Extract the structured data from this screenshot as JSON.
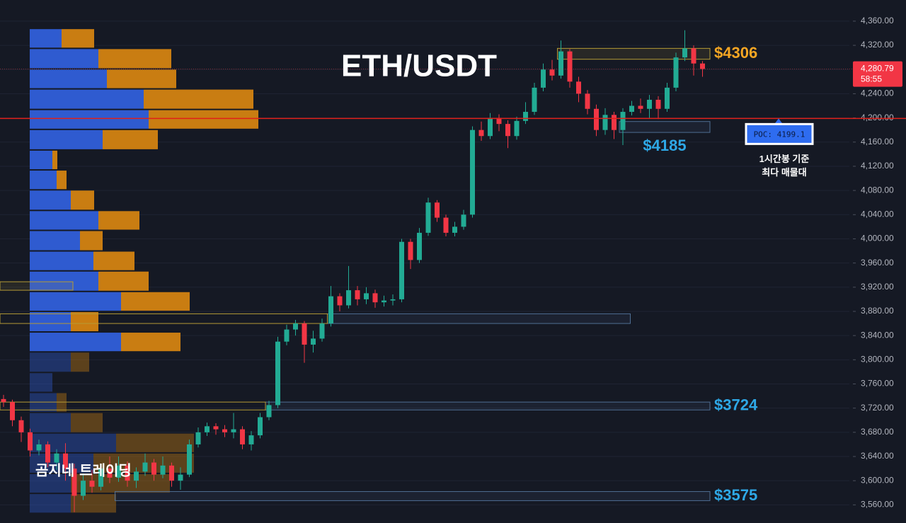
{
  "chart_data": {
    "type": "candlestick",
    "title": "ETH/USDT",
    "watermark": "곰지네 트레이딩",
    "ylim": [
      3530,
      4395
    ],
    "yticks": [
      {
        "value": 4360,
        "label": "4,360.00"
      },
      {
        "value": 4320,
        "label": "4,320.00"
      },
      {
        "value": 4280,
        "label": "4,280.00"
      },
      {
        "value": 4240,
        "label": "4,240.00"
      },
      {
        "value": 4200,
        "label": "4,200.00"
      },
      {
        "value": 4160,
        "label": "4,160.00"
      },
      {
        "value": 4120,
        "label": "4,120.00"
      },
      {
        "value": 4080,
        "label": "4,080.00"
      },
      {
        "value": 4040,
        "label": "4,040.00"
      },
      {
        "value": 4000,
        "label": "4,000.00"
      },
      {
        "value": 3960,
        "label": "3,960.00"
      },
      {
        "value": 3920,
        "label": "3,920.00"
      },
      {
        "value": 3880,
        "label": "3,880.00"
      },
      {
        "value": 3840,
        "label": "3,840.00"
      },
      {
        "value": 3800,
        "label": "3,800.00"
      },
      {
        "value": 3760,
        "label": "3,760.00"
      },
      {
        "value": 3720,
        "label": "3,720.00"
      },
      {
        "value": 3680,
        "label": "3,680.00"
      },
      {
        "value": 3640,
        "label": "3,640.00"
      },
      {
        "value": 3600,
        "label": "3,600.00"
      },
      {
        "value": 3560,
        "label": "3,560.00"
      }
    ],
    "grid": true,
    "up_color": "#22ab94",
    "down_color": "#f23645",
    "open": [
      3735,
      3730,
      3700,
      3680,
      3650,
      3660,
      3630,
      3645,
      3620,
      3575,
      3600,
      3590,
      3620,
      3605,
      3625,
      3600,
      3615,
      3630,
      3610,
      3625,
      3600,
      3610,
      3660,
      3680,
      3690,
      3685,
      3680,
      3685,
      3660,
      3675,
      3705,
      3725,
      3830,
      3850,
      3860,
      3825,
      3835,
      3860,
      3905,
      3890,
      3915,
      3900,
      3910,
      3895,
      3898,
      3900,
      3995,
      3965,
      4010,
      4060,
      4035,
      4010,
      4020,
      4040,
      4180,
      4170,
      4200,
      4190,
      4170,
      4195,
      4210,
      4250,
      4280,
      4270,
      4310,
      4260,
      4240,
      4215,
      4180,
      4205,
      4180,
      4210,
      4220,
      4215,
      4230,
      4215,
      4250,
      4300,
      4315,
      4290
    ],
    "high": [
      3742,
      3734,
      3706,
      3686,
      3668,
      3665,
      3652,
      3662,
      3628,
      3612,
      3618,
      3628,
      3640,
      3640,
      3632,
      3622,
      3645,
      3636,
      3640,
      3630,
      3622,
      3668,
      3688,
      3696,
      3695,
      3692,
      3712,
      3690,
      3682,
      3712,
      3732,
      3838,
      3858,
      3866,
      3864,
      3848,
      3868,
      3922,
      3910,
      3955,
      3922,
      3920,
      3916,
      3906,
      3908,
      4000,
      4000,
      4018,
      4068,
      4064,
      4040,
      4028,
      4048,
      4186,
      4194,
      4208,
      4206,
      4196,
      4202,
      4226,
      4258,
      4290,
      4296,
      4328,
      4314,
      4268,
      4246,
      4222,
      4216,
      4210,
      4216,
      4228,
      4232,
      4238,
      4236,
      4258,
      4308,
      4345,
      4320,
      4294
    ],
    "low": [
      3722,
      3690,
      3664,
      3640,
      3642,
      3622,
      3618,
      3600,
      3548,
      3568,
      3580,
      3584,
      3596,
      3598,
      3590,
      3588,
      3608,
      3600,
      3604,
      3590,
      3585,
      3606,
      3655,
      3674,
      3676,
      3672,
      3670,
      3652,
      3650,
      3670,
      3700,
      3720,
      3824,
      3840,
      3795,
      3812,
      3830,
      3855,
      3880,
      3885,
      3890,
      3892,
      3886,
      3888,
      3890,
      3895,
      3950,
      3960,
      4005,
      4028,
      4004,
      4004,
      4015,
      4035,
      4162,
      4165,
      4178,
      4150,
      4164,
      4190,
      4205,
      4244,
      4262,
      4265,
      4250,
      4226,
      4206,
      4170,
      4172,
      4165,
      4155,
      4204,
      4208,
      4200,
      4198,
      4210,
      4244,
      4294,
      4270,
      4268
    ],
    "close": [
      3730,
      3700,
      3680,
      3650,
      3660,
      3630,
      3645,
      3620,
      3575,
      3600,
      3590,
      3620,
      3605,
      3625,
      3600,
      3615,
      3630,
      3610,
      3625,
      3600,
      3610,
      3660,
      3680,
      3690,
      3685,
      3680,
      3685,
      3660,
      3675,
      3705,
      3725,
      3830,
      3850,
      3860,
      3825,
      3835,
      3860,
      3905,
      3890,
      3915,
      3900,
      3910,
      3895,
      3898,
      3900,
      3995,
      3965,
      4010,
      4060,
      4035,
      4010,
      4020,
      4040,
      4180,
      4170,
      4200,
      4190,
      4170,
      4195,
      4210,
      4250,
      4280,
      4270,
      4310,
      4260,
      4240,
      4215,
      4180,
      4205,
      4180,
      4210,
      4220,
      4215,
      4230,
      4215,
      4250,
      4300,
      4315,
      4290,
      4281
    ],
    "volume_profile": {
      "bins": [
        4348,
        4315,
        4281,
        4248,
        4214,
        4181,
        4147,
        4114,
        4081,
        4047,
        4014,
        3980,
        3947,
        3913,
        3880,
        3846,
        3813,
        3779,
        3746,
        3713,
        3679,
        3646,
        3612,
        3579,
        3546
      ],
      "buy": [
        45,
        97,
        109,
        161,
        168,
        103,
        32,
        38,
        58,
        97,
        71,
        90,
        97,
        129,
        58,
        129,
        58,
        32,
        38,
        58,
        122,
        90,
        58,
        58
      ],
      "sell": [
        46,
        103,
        98,
        155,
        155,
        78,
        7,
        14,
        33,
        58,
        32,
        58,
        71,
        97,
        39,
        84,
        26,
        0,
        14,
        45,
        110,
        142,
        140,
        64
      ],
      "buy_color": "#2f5bd0",
      "sell_color": "#c97d12"
    },
    "zones": [
      {
        "low": 4297,
        "high": 4315,
        "start": 63,
        "end": 80,
        "color": "#b59b36",
        "label": "$4306",
        "label_color": "#f5a623",
        "label_position": "right"
      },
      {
        "low": 4176,
        "high": 4194,
        "start": 70,
        "end": 80,
        "color": "#4f6f94",
        "label": "$4185",
        "label_color": "#2ea8e6",
        "label_position": "below"
      },
      {
        "low": 3717,
        "high": 3730,
        "start": 30,
        "end": 80,
        "color": "#4f6f94",
        "label": "$3724",
        "label_color": "#2ea8e6",
        "label_position": "right",
        "extend_left": true
      },
      {
        "low": 3567,
        "high": 3582,
        "start": 13,
        "end": 80,
        "color": "#4f6f94",
        "label": "$3575",
        "label_color": "#2ea8e6",
        "label_position": "right"
      },
      {
        "low": 3860,
        "high": 3876,
        "start": 37,
        "end": 71,
        "color": "#4f6f94",
        "extend_left": true
      },
      {
        "low": 3915,
        "high": 3929,
        "start": 0,
        "end": 8,
        "color": "#b59b36"
      }
    ],
    "poc": {
      "value": 4199.1,
      "label": "POC: 4199.1",
      "color": "#e0201a",
      "note": [
        "1시간봉 기준",
        "최다 매물대"
      ]
    },
    "last_price": {
      "value": 4280.79,
      "label": "4,280.79",
      "countdown": "58:55",
      "color": "#f23645"
    }
  }
}
